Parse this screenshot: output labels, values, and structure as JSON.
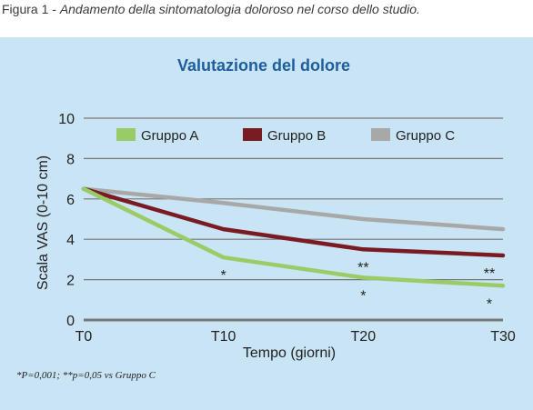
{
  "figure": {
    "caption_lead": "Figura 1 - ",
    "caption_text": "Andamento della sintomatologia doloroso nel corso dello studio.",
    "footnote": "*P=0,001; **p=0,05 vs Gruppo C"
  },
  "colors": {
    "panel_bg": "#c9e4f4",
    "title": "#1d5e9c",
    "gridline": "#777777",
    "gruppo_a": "#99cc66",
    "gruppo_b": "#7a1a22",
    "gruppo_c": "#a8a8a8"
  },
  "chart_data": {
    "type": "line",
    "title": "Valutazione del dolore",
    "xlabel": "Tempo (giorni)",
    "ylabel": "Scala VAS (0-10 cm)",
    "categories": [
      "T0",
      "T10",
      "T20",
      "T30"
    ],
    "yticks": [
      "0",
      "2",
      "4",
      "6",
      "8",
      "10"
    ],
    "ylim": [
      0,
      10
    ],
    "grid": true,
    "legend_position": "top",
    "series": [
      {
        "name": "Gruppo A",
        "values": [
          6.5,
          3.1,
          2.1,
          1.7
        ]
      },
      {
        "name": "Gruppo B",
        "values": [
          6.5,
          4.5,
          3.5,
          3.2
        ]
      },
      {
        "name": "Gruppo C",
        "values": [
          6.5,
          5.8,
          5.0,
          4.5
        ]
      }
    ],
    "annotations": [
      {
        "category": "T10",
        "text": "*",
        "series": "Gruppo A"
      },
      {
        "category": "T20",
        "text": "**",
        "series": "Gruppo B"
      },
      {
        "category": "T20",
        "text": "*",
        "series": "Gruppo A"
      },
      {
        "category": "T30",
        "text": "**",
        "series": "Gruppo B"
      },
      {
        "category": "T30",
        "text": "*",
        "series": "Gruppo A"
      }
    ]
  }
}
